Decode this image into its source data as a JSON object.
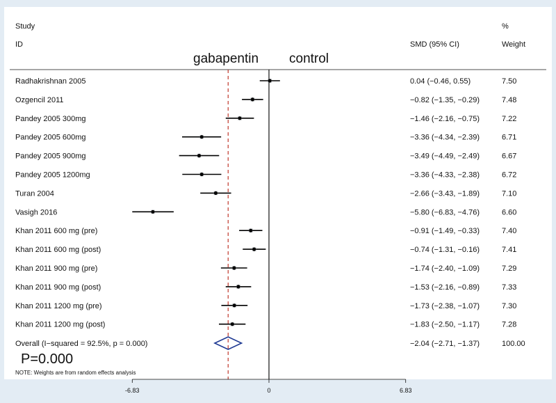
{
  "chart_data": {
    "type": "forest",
    "headers": {
      "study_top": "Study",
      "study_bottom": "ID",
      "smd": "SMD (95% CI)",
      "weight_top": "%",
      "weight_bottom": "Weight"
    },
    "direction_labels": {
      "left": "gabapentin",
      "right": "control"
    },
    "studies": [
      {
        "label": "Radhakrishnan 2005",
        "smd": 0.04,
        "lo": -0.46,
        "hi": 0.55,
        "ci_text": "0.04 (−0.46, 0.55)",
        "weight": "7.50"
      },
      {
        "label": "Ozgencil 2011",
        "smd": -0.82,
        "lo": -1.35,
        "hi": -0.29,
        "ci_text": "−0.82 (−1.35, −0.29)",
        "weight": "7.48"
      },
      {
        "label": "Pandey 2005 300mg",
        "smd": -1.46,
        "lo": -2.16,
        "hi": -0.75,
        "ci_text": "−1.46 (−2.16, −0.75)",
        "weight": "7.22"
      },
      {
        "label": "Pandey 2005 600mg",
        "smd": -3.36,
        "lo": -4.34,
        "hi": -2.39,
        "ci_text": "−3.36 (−4.34, −2.39)",
        "weight": "6.71"
      },
      {
        "label": "Pandey 2005 900mg",
        "smd": -3.49,
        "lo": -4.49,
        "hi": -2.49,
        "ci_text": "−3.49 (−4.49, −2.49)",
        "weight": "6.67"
      },
      {
        "label": "Pandey 2005 1200mg",
        "smd": -3.36,
        "lo": -4.33,
        "hi": -2.38,
        "ci_text": "−3.36 (−4.33, −2.38)",
        "weight": "6.72"
      },
      {
        "label": "Turan 2004",
        "smd": -2.66,
        "lo": -3.43,
        "hi": -1.89,
        "ci_text": "−2.66 (−3.43, −1.89)",
        "weight": "7.10"
      },
      {
        "label": "Vasigh 2016",
        "smd": -5.8,
        "lo": -6.83,
        "hi": -4.76,
        "ci_text": "−5.80 (−6.83, −4.76)",
        "weight": "6.60"
      },
      {
        "label": "Khan 2011 600 mg (pre)",
        "smd": -0.91,
        "lo": -1.49,
        "hi": -0.33,
        "ci_text": "−0.91 (−1.49, −0.33)",
        "weight": "7.40"
      },
      {
        "label": "Khan 2011 600 mg (post)",
        "smd": -0.74,
        "lo": -1.31,
        "hi": -0.16,
        "ci_text": "−0.74 (−1.31, −0.16)",
        "weight": "7.41"
      },
      {
        "label": "Khan 2011 900 mg (pre)",
        "smd": -1.74,
        "lo": -2.4,
        "hi": -1.09,
        "ci_text": "−1.74 (−2.40, −1.09)",
        "weight": "7.29"
      },
      {
        "label": "Khan 2011 900 mg (post)",
        "smd": -1.53,
        "lo": -2.16,
        "hi": -0.89,
        "ci_text": "−1.53 (−2.16, −0.89)",
        "weight": "7.33"
      },
      {
        "label": "Khan 2011 1200 mg (pre)",
        "smd": -1.73,
        "lo": -2.38,
        "hi": -1.07,
        "ci_text": "−1.73 (−2.38, −1.07)",
        "weight": "7.30"
      },
      {
        "label": "Khan 2011 1200 mg (post)",
        "smd": -1.83,
        "lo": -2.5,
        "hi": -1.17,
        "ci_text": "−1.83 (−2.50, −1.17)",
        "weight": "7.28"
      }
    ],
    "overall": {
      "label": "Overall  (I−squared = 92.5%, p = 0.000)",
      "smd": -2.04,
      "lo": -2.71,
      "hi": -1.37,
      "ci_text": "−2.04 (−2.71, −1.37)",
      "weight": "100.00"
    },
    "p_value_text": "P=0.000",
    "note": "NOTE: Weights are from random effects analysis",
    "xlim": [
      -6.83,
      6.83
    ],
    "xticks": [
      {
        "value": -6.83,
        "label": "-6.83"
      },
      {
        "value": 0,
        "label": "0"
      },
      {
        "value": 6.83,
        "label": "6.83"
      }
    ],
    "colors": {
      "background": "#e3ecf4",
      "panel": "#ffffff",
      "pooled_line": "#c0392b",
      "diamond": "#1f3a93",
      "marker": "#000000"
    }
  }
}
